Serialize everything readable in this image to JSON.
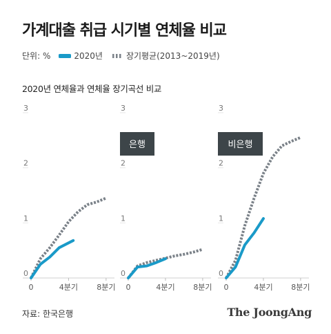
{
  "title": "가계대출 취급 시기별 연체율 비교",
  "legend": {
    "unit": "단위: %",
    "items": [
      {
        "label": "2020년",
        "color": "#1a9ac8",
        "style": "solid"
      },
      {
        "label": "장기평균(2013~2019년)",
        "color": "#7a8188",
        "style": "dotted"
      }
    ]
  },
  "subtitle": "2020년 연체율과 연체율 장기곡선 비교",
  "source": "자료: 한국은행",
  "logo": "The JoongAng",
  "chart_data": [
    {
      "type": "line",
      "title": "",
      "x_ticks": [
        {
          "x": 0,
          "label": "0"
        },
        {
          "x": 4,
          "label": "4분기"
        },
        {
          "x": 8,
          "label": "8분기"
        }
      ],
      "y_ticks": [
        {
          "y": 0,
          "label": "0"
        },
        {
          "y": 1,
          "label": "1"
        },
        {
          "y": 2,
          "label": "2"
        },
        {
          "y": 3,
          "label": "3"
        }
      ],
      "xlim": [
        0,
        8.6
      ],
      "ylim": [
        0,
        3
      ],
      "series": [
        {
          "name": "2020년",
          "color": "#1a9ac8",
          "style": "solid",
          "x": [
            0,
            1,
            2,
            3,
            4.5
          ],
          "y": [
            0,
            0.25,
            0.38,
            0.55,
            0.68
          ]
        },
        {
          "name": "장기평균(2013~2019년)",
          "color": "#7a8188",
          "style": "dotted",
          "x": [
            0,
            1,
            2,
            3,
            4,
            5,
            6,
            7,
            8
          ],
          "y": [
            0,
            0.35,
            0.55,
            0.78,
            1.02,
            1.2,
            1.33,
            1.38,
            1.45
          ]
        }
      ]
    },
    {
      "type": "line",
      "title": "은행",
      "x_ticks": [
        {
          "x": 0,
          "label": "0"
        },
        {
          "x": 4,
          "label": "4분기"
        },
        {
          "x": 8,
          "label": "8분기"
        }
      ],
      "y_ticks": [
        {
          "y": 0,
          "label": "0"
        },
        {
          "y": 1,
          "label": "1"
        },
        {
          "y": 2,
          "label": "2"
        },
        {
          "y": 3,
          "label": "3"
        }
      ],
      "xlim": [
        0,
        8.6
      ],
      "ylim": [
        0,
        3
      ],
      "series": [
        {
          "name": "2020년",
          "color": "#1a9ac8",
          "style": "solid",
          "x": [
            0,
            1,
            2,
            3,
            4
          ],
          "y": [
            0,
            0.2,
            0.22,
            0.28,
            0.35
          ]
        },
        {
          "name": "장기평균(2013~2019년)",
          "color": "#7a8188",
          "style": "dotted",
          "x": [
            0,
            1,
            2,
            3,
            4,
            5,
            6,
            7,
            8
          ],
          "y": [
            0,
            0.22,
            0.28,
            0.32,
            0.36,
            0.4,
            0.43,
            0.47,
            0.52
          ]
        }
      ]
    },
    {
      "type": "line",
      "title": "비은행",
      "x_ticks": [
        {
          "x": 0,
          "label": "0"
        },
        {
          "x": 4,
          "label": "4분기"
        },
        {
          "x": 8,
          "label": "8분기"
        }
      ],
      "y_ticks": [
        {
          "y": 0,
          "label": "0"
        },
        {
          "y": 1,
          "label": "1"
        },
        {
          "y": 2,
          "label": "2"
        },
        {
          "y": 3,
          "label": "3"
        }
      ],
      "xlim": [
        0,
        8.6
      ],
      "ylim": [
        0,
        3
      ],
      "series": [
        {
          "name": "2020년",
          "color": "#1a9ac8",
          "style": "solid",
          "x": [
            0,
            1,
            2,
            3,
            4
          ],
          "y": [
            0,
            0.2,
            0.6,
            0.82,
            1.08
          ]
        },
        {
          "name": "장기평균(2013~2019년)",
          "color": "#7a8188",
          "style": "dotted",
          "x": [
            0,
            1,
            2,
            3,
            4,
            5,
            6,
            7,
            8
          ],
          "y": [
            0,
            0.32,
            0.95,
            1.45,
            1.9,
            2.2,
            2.4,
            2.48,
            2.55
          ]
        }
      ]
    }
  ]
}
